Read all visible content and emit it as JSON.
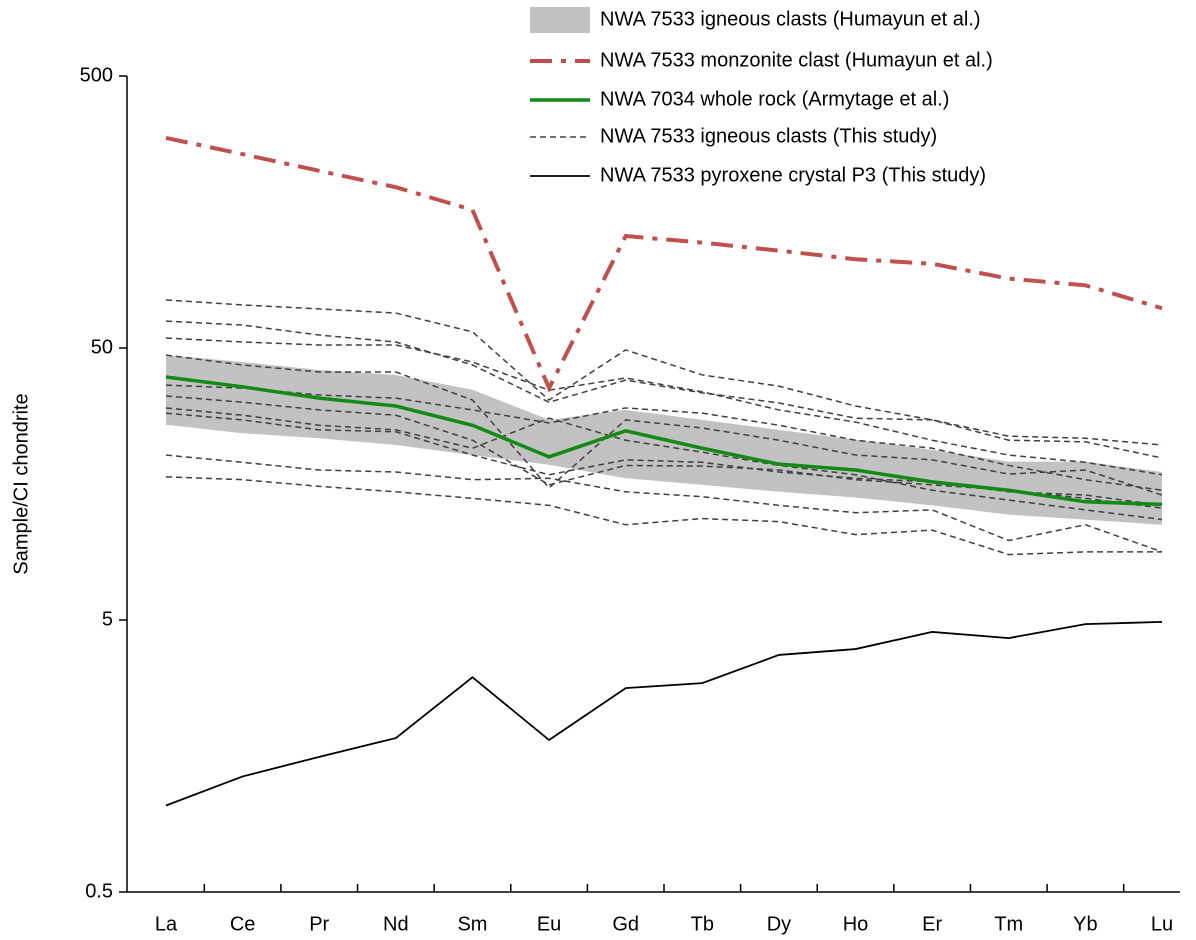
{
  "chart_data": {
    "type": "line",
    "ylabel": "Sample/CI chondrite",
    "log_y": true,
    "ylim": [
      0.5,
      500
    ],
    "yticks": [
      500,
      50,
      5,
      0.5
    ],
    "categories": [
      "La",
      "Ce",
      "Pr",
      "Nd",
      "Sm",
      "Eu",
      "Gd",
      "Tb",
      "Dy",
      "Ho",
      "Er",
      "Tm",
      "Yb",
      "Lu"
    ],
    "legend": "top-right",
    "series": [
      {
        "name": "NWA 7533 igneous clasts (Humayun et al.)",
        "kind": "band",
        "color": "#c2c2c2",
        "upper": [
          47.1,
          44.4,
          41.5,
          39.8,
          35.1,
          27.2,
          29.6,
          27.2,
          25.0,
          23.0,
          21.1,
          19.1,
          19.1,
          17.5
        ],
        "lower": [
          26.1,
          24.3,
          23.3,
          22.0,
          20.2,
          18.6,
          16.6,
          15.7,
          14.8,
          14.1,
          13.2,
          12.2,
          11.7,
          11.2
        ]
      },
      {
        "name": "NWA 7533 monzonite clast (Humayun et al.)",
        "kind": "line",
        "color": "#c0504d",
        "dash": "dashdot",
        "width": 4,
        "values": [
          296,
          258,
          224,
          195,
          161,
          35.6,
          129,
          122,
          114,
          106,
          102,
          90,
          85,
          70
        ]
      },
      {
        "name": "NWA 7034 whole rock (Armytage et al.)",
        "kind": "line",
        "color": "#138a13",
        "dash": "solid",
        "width": 3.5,
        "values": [
          39.1,
          36.0,
          32.7,
          30.6,
          26.0,
          19.9,
          24.8,
          21.4,
          18.7,
          17.8,
          16.1,
          15.0,
          13.6,
          13.3
        ]
      },
      {
        "name": "NWA 7533 igneous clasts (This study)",
        "kind": "multiline",
        "color": "#404040",
        "dash": "dash",
        "width": 1.5,
        "lines": [
          [
            75.1,
            72.0,
            69.6,
            67.2,
            57.3,
            32.2,
            49.2,
            39.8,
            36.2,
            30.6,
            27.2,
            23.7,
            23.3,
            22.0
          ],
          [
            62.8,
            60.7,
            55.8,
            52.6,
            43.3,
            31.6,
            38.1,
            34.2,
            31.4,
            27.6,
            27.2,
            22.9,
            22.6,
            19.7
          ],
          [
            54.4,
            52.6,
            51.3,
            51.3,
            44.4,
            35.0,
            38.8,
            34.5,
            29.6,
            26.7,
            22.9,
            20.2,
            19.0,
            17.1
          ],
          [
            47.1,
            43.3,
            40.8,
            40.8,
            32.2,
            15.3,
            27.2,
            25.4,
            22.9,
            20.2,
            19.4,
            17.2,
            17.8,
            14.4
          ],
          [
            36.5,
            35.6,
            33.6,
            32.7,
            29.6,
            26.5,
            30.1,
            28.8,
            26.0,
            22.9,
            21.4,
            18.5,
            16.4,
            15.0
          ],
          [
            33.3,
            31.6,
            29.6,
            28.3,
            22.9,
            15.7,
            18.5,
            18.4,
            17.8,
            16.4,
            15.7,
            15.0,
            14.0,
            12.9
          ],
          [
            30.1,
            28.3,
            26.0,
            25.0,
            21.4,
            27.6,
            22.9,
            20.7,
            18.5,
            17.1,
            15.0,
            13.8,
            12.7,
            11.7
          ],
          [
            28.8,
            27.2,
            25.0,
            24.6,
            20.2,
            17.1,
            19.4,
            19.0,
            17.5,
            16.6,
            16.1,
            14.8,
            14.4,
            13.2
          ],
          [
            20.2,
            19.0,
            17.8,
            17.5,
            16.4,
            16.6,
            14.8,
            14.2,
            13.2,
            12.4,
            12.7,
            9.8,
            11.2,
            8.9
          ],
          [
            16.8,
            16.4,
            15.5,
            14.8,
            14.0,
            13.2,
            11.2,
            11.8,
            11.5,
            10.3,
            10.7,
            8.7,
            8.9,
            8.9
          ]
        ]
      },
      {
        "name": "NWA 7533 pyroxene crystal P3 (This study)",
        "kind": "line",
        "color": "#000000",
        "dash": "solid",
        "width": 1.8,
        "values": [
          1.04,
          1.33,
          1.57,
          1.84,
          3.08,
          1.81,
          2.81,
          2.93,
          3.72,
          3.91,
          4.52,
          4.29,
          4.83,
          4.92
        ]
      }
    ]
  }
}
